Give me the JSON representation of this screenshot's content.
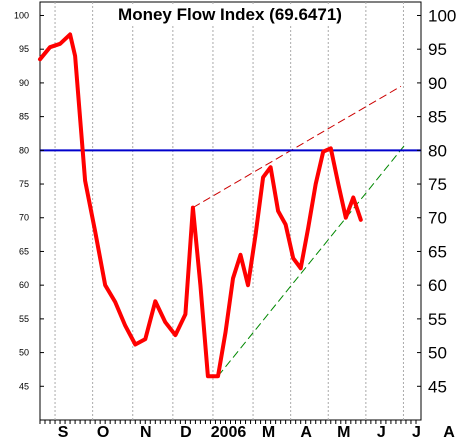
{
  "chart_data": {
    "type": "line",
    "title": "Money Flow Index (69.6471)",
    "ylim": [
      40,
      102
    ],
    "y_ticks": [
      45,
      50,
      55,
      60,
      65,
      70,
      75,
      80,
      85,
      90,
      95,
      100
    ],
    "x_tick_labels": [
      "S",
      "O",
      "N",
      "D",
      "2006",
      "M",
      "A",
      "M",
      "J",
      "J",
      "A"
    ],
    "grid": true,
    "series": [
      {
        "color": "#ff0000",
        "points": [
          [
            0,
            93.5
          ],
          [
            2,
            95.3
          ],
          [
            4,
            95.8
          ],
          [
            6,
            97.2
          ],
          [
            7,
            94
          ],
          [
            9,
            75.5
          ],
          [
            11,
            68
          ],
          [
            13,
            60
          ],
          [
            15,
            57.5
          ],
          [
            17,
            54
          ],
          [
            19,
            51.2
          ],
          [
            21,
            52
          ],
          [
            23,
            57.6
          ],
          [
            25,
            54.5
          ],
          [
            27,
            52.6
          ],
          [
            29,
            55.7
          ],
          [
            30.5,
            71.5
          ],
          [
            32,
            60
          ],
          [
            33.5,
            46.5
          ],
          [
            35.5,
            46.5
          ],
          [
            37,
            53
          ],
          [
            38.5,
            61
          ],
          [
            40,
            64.5
          ],
          [
            41.5,
            60
          ],
          [
            43,
            67.5
          ],
          [
            44.5,
            76
          ],
          [
            46,
            77.5
          ],
          [
            47.5,
            71
          ],
          [
            49,
            69
          ],
          [
            50.5,
            64
          ],
          [
            52,
            62.5
          ],
          [
            53.5,
            68.5
          ],
          [
            55,
            75
          ],
          [
            56.5,
            79.8
          ],
          [
            58,
            80.3
          ],
          [
            59.5,
            75
          ],
          [
            61,
            70
          ],
          [
            62.5,
            73
          ],
          [
            64,
            69.7
          ]
        ]
      }
    ],
    "reference_line": {
      "value": 80,
      "color": "#0000cc"
    },
    "trendlines": [
      {
        "color": "#cc0000",
        "from": [
          30.5,
          71.5
        ],
        "to": [
          72,
          89.5
        ]
      },
      {
        "color": "#008800",
        "from": [
          35.5,
          46.5
        ],
        "to": [
          73,
          81
        ]
      }
    ]
  }
}
